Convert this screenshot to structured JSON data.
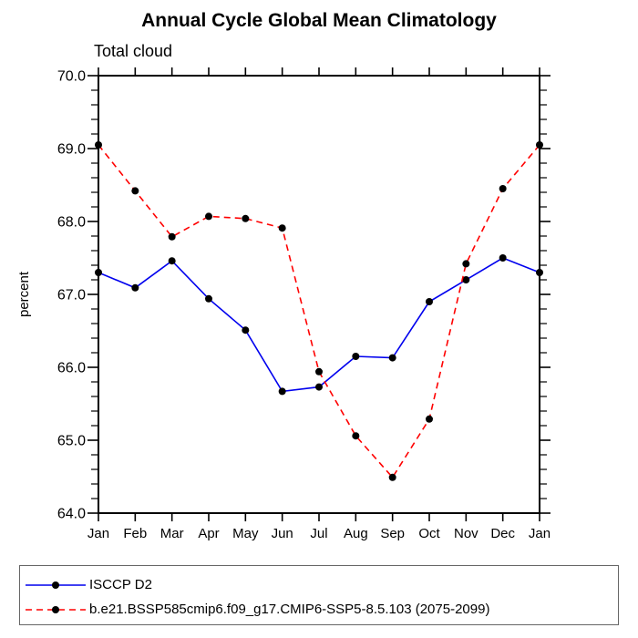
{
  "title": "Annual Cycle Global Mean Climatology",
  "subtitle": "Total cloud",
  "chart_data": {
    "type": "line",
    "title": "Annual Cycle Global Mean Climatology",
    "subtitle": "Total cloud",
    "xlabel": "",
    "ylabel": "percent",
    "categories": [
      "Jan",
      "Feb",
      "Mar",
      "Apr",
      "May",
      "Jun",
      "Jul",
      "Aug",
      "Sep",
      "Oct",
      "Nov",
      "Dec",
      "Jan"
    ],
    "ylim": [
      64.0,
      70.0
    ],
    "ytick_major": 1.0,
    "ytick_minor": 0.2,
    "ytick_labels": [
      "70.0",
      "69.0",
      "68.0",
      "67.0",
      "66.0",
      "65.0",
      "64.0"
    ],
    "grid": false,
    "legend_position": "bottom",
    "series": [
      {
        "name": "ISCCP D2",
        "color": "#0000ee",
        "style": "solid",
        "marker": "filled-circle",
        "marker_color": "#000000",
        "values": [
          67.3,
          67.09,
          67.46,
          66.94,
          66.51,
          65.67,
          65.73,
          66.15,
          66.13,
          66.9,
          67.2,
          67.5,
          67.3
        ]
      },
      {
        "name": "b.e21.BSSP585cmip6.f09_g17.CMIP6-SSP5-8.5.103 (2075-2099)",
        "color": "#ff0000",
        "style": "dashed",
        "marker": "filled-circle",
        "marker_color": "#000000",
        "values": [
          69.05,
          68.42,
          67.79,
          68.07,
          68.04,
          67.91,
          65.94,
          65.06,
          64.49,
          65.29,
          67.42,
          68.45,
          69.05
        ]
      }
    ]
  }
}
